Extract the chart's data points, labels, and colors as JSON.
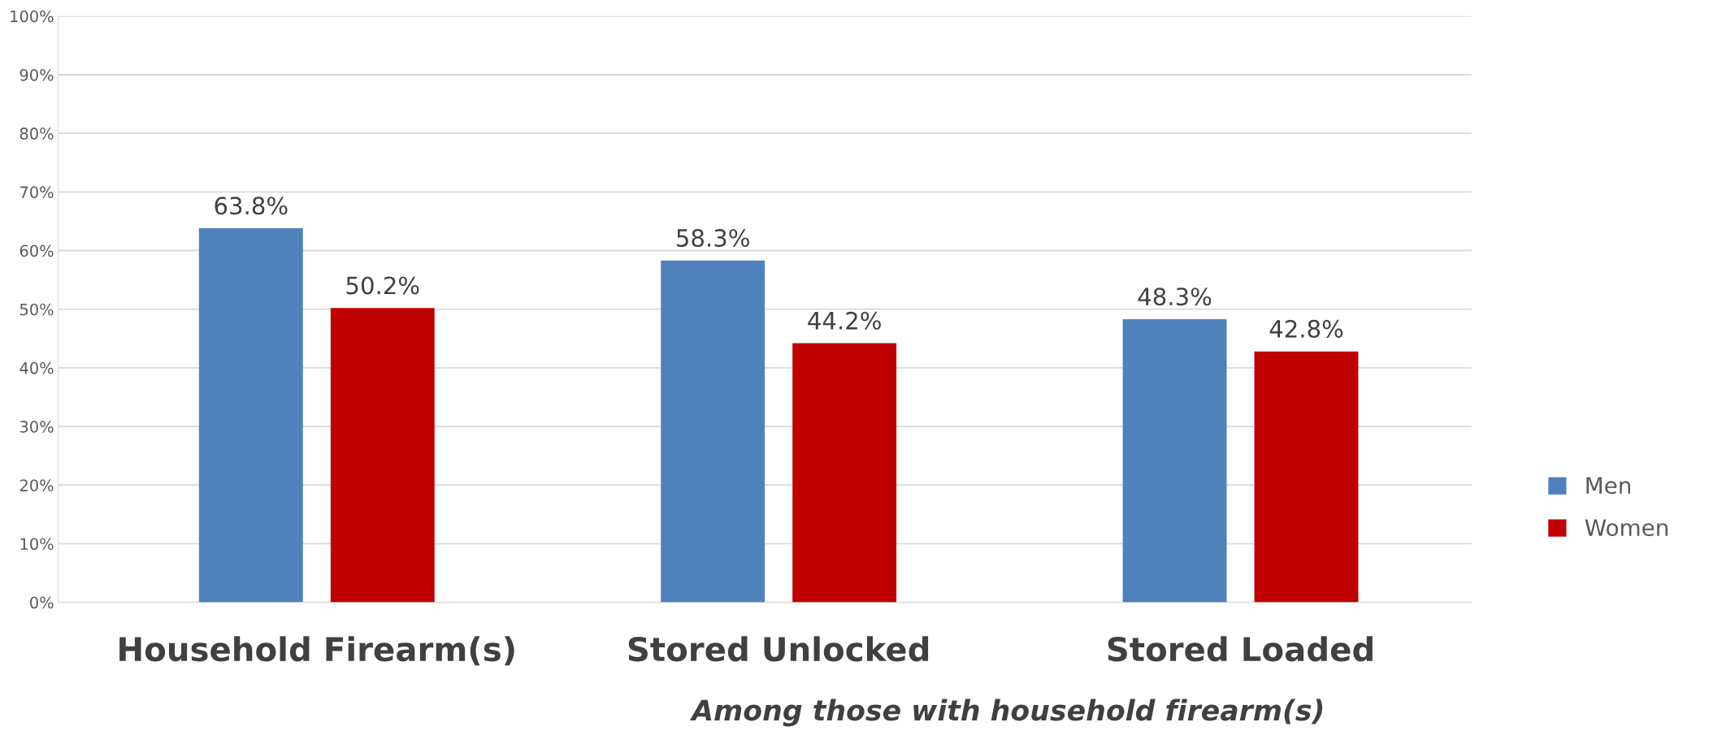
{
  "chart_data": {
    "type": "bar",
    "categories": [
      "Household Firearm(s)",
      "Stored Unlocked",
      "Stored Loaded"
    ],
    "series": [
      {
        "name": "Men",
        "color": "#4f81bd",
        "values": [
          63.8,
          58.3,
          48.3
        ],
        "value_labels": [
          "63.8%",
          "58.3%",
          "48.3%"
        ]
      },
      {
        "name": "Women",
        "color": "#c00000",
        "values": [
          50.2,
          44.2,
          42.8
        ],
        "value_labels": [
          "50.2%",
          "44.2%",
          "42.8%"
        ]
      }
    ],
    "ylim": [
      0,
      100
    ],
    "yticks": [
      {
        "value": 0,
        "label": "0%"
      },
      {
        "value": 10,
        "label": "10%"
      },
      {
        "value": 20,
        "label": "20%"
      },
      {
        "value": 30,
        "label": "30%"
      },
      {
        "value": 40,
        "label": "40%"
      },
      {
        "value": 50,
        "label": "50%"
      },
      {
        "value": 60,
        "label": "60%"
      },
      {
        "value": 70,
        "label": "70%"
      },
      {
        "value": 80,
        "label": "80%"
      },
      {
        "value": 90,
        "label": "90%"
      },
      {
        "value": 100,
        "label": "100%"
      }
    ],
    "grid": "y",
    "legend": "right",
    "annotations": [
      "Among those with household firearm(s)"
    ]
  }
}
